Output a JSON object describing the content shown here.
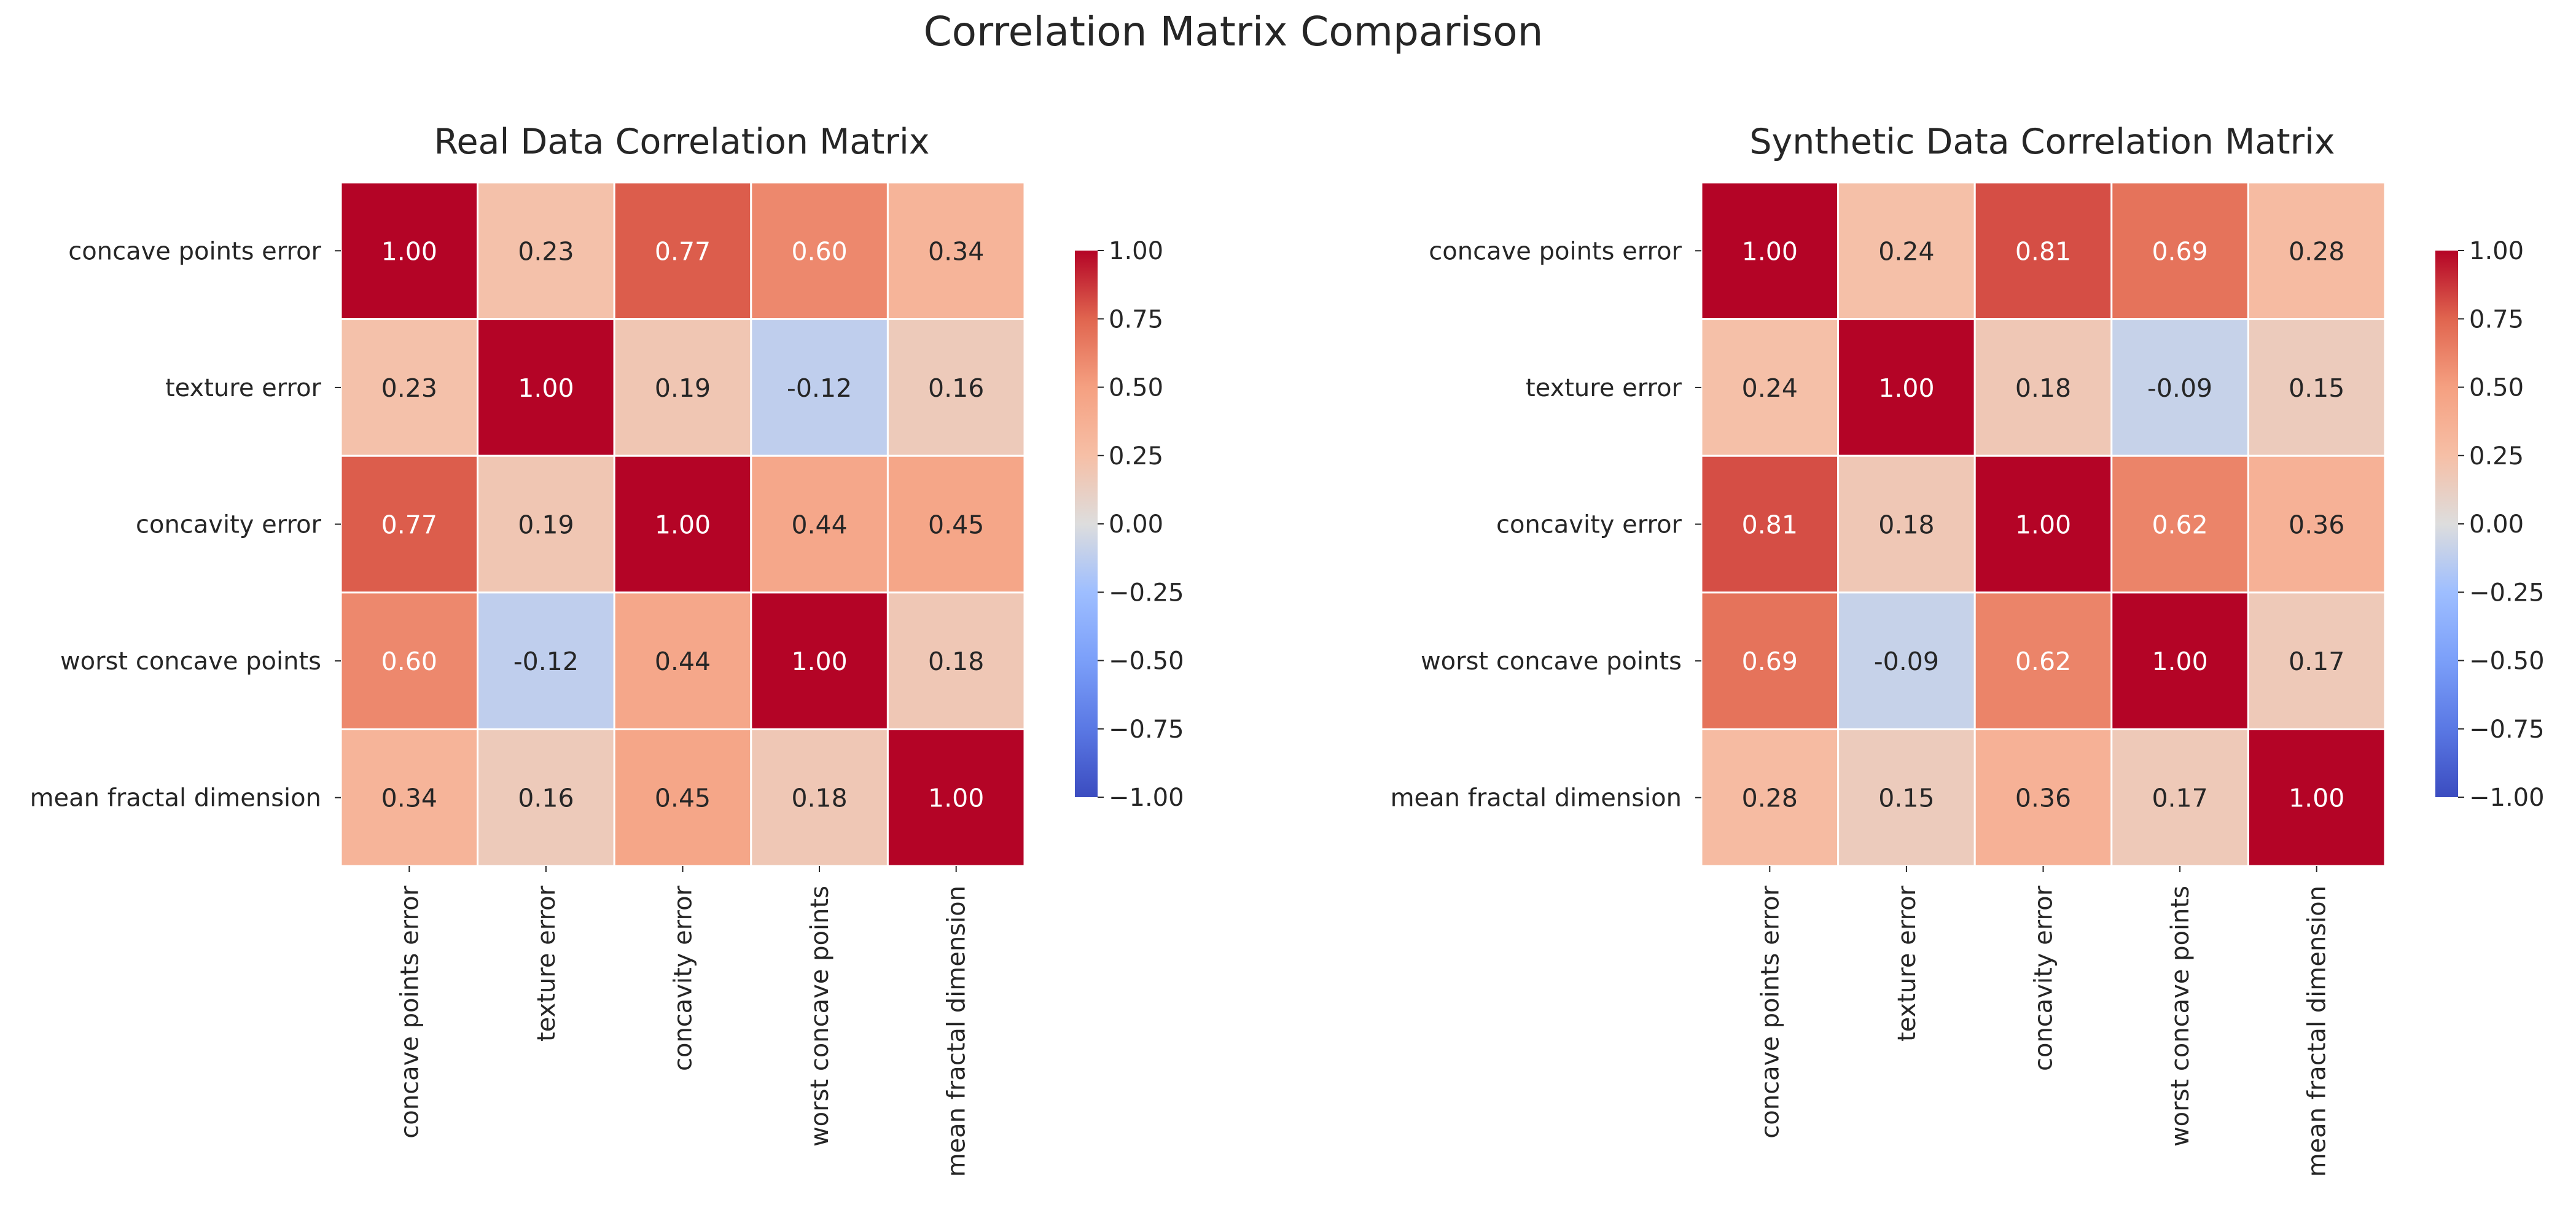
{
  "figure": {
    "suptitle": "Correlation Matrix Comparison"
  },
  "chart_data": [
    {
      "type": "heatmap",
      "title": "Real Data Correlation Matrix",
      "x_labels": [
        "concave points error",
        "texture error",
        "concavity error",
        "worst concave points",
        "mean fractal dimension"
      ],
      "y_labels": [
        "concave points error",
        "texture error",
        "concavity error",
        "worst concave points",
        "mean fractal dimension"
      ],
      "values": [
        [
          1.0,
          0.23,
          0.77,
          0.6,
          0.34
        ],
        [
          0.23,
          1.0,
          0.19,
          -0.12,
          0.16
        ],
        [
          0.77,
          0.19,
          1.0,
          0.44,
          0.45
        ],
        [
          0.6,
          -0.12,
          0.44,
          1.0,
          0.18
        ],
        [
          0.34,
          0.16,
          0.45,
          0.18,
          1.0
        ]
      ],
      "annotation_format": "0.00",
      "colormap": "coolwarm",
      "vmin": -1.0,
      "vmax": 1.0,
      "colorbar_ticks": [
        "1.00",
        "0.75",
        "0.50",
        "0.25",
        "0.00",
        "−0.25",
        "−0.50",
        "−0.75",
        "−1.00"
      ]
    },
    {
      "type": "heatmap",
      "title": "Synthetic Data Correlation Matrix",
      "x_labels": [
        "concave points error",
        "texture error",
        "concavity error",
        "worst concave points",
        "mean fractal dimension"
      ],
      "y_labels": [
        "concave points error",
        "texture error",
        "concavity error",
        "worst concave points",
        "mean fractal dimension"
      ],
      "values": [
        [
          1.0,
          0.24,
          0.81,
          0.69,
          0.28
        ],
        [
          0.24,
          1.0,
          0.18,
          -0.09,
          0.15
        ],
        [
          0.81,
          0.18,
          1.0,
          0.62,
          0.36
        ],
        [
          0.69,
          -0.09,
          0.62,
          1.0,
          0.17
        ],
        [
          0.28,
          0.15,
          0.36,
          0.17,
          1.0
        ]
      ],
      "annotation_format": "0.00",
      "colormap": "coolwarm",
      "vmin": -1.0,
      "vmax": 1.0,
      "colorbar_ticks": [
        "1.00",
        "0.75",
        "0.50",
        "0.25",
        "0.00",
        "−0.25",
        "−0.50",
        "−0.75",
        "−1.00"
      ]
    }
  ]
}
